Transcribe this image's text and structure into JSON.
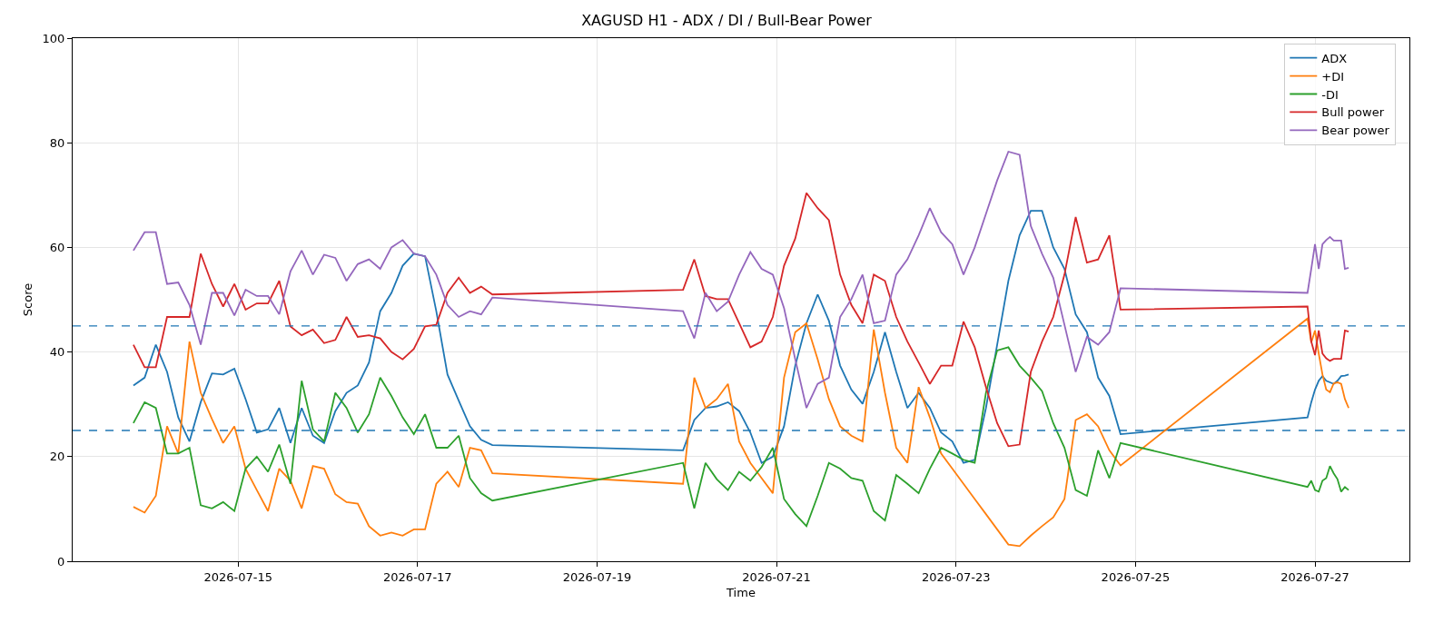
{
  "chart_data": {
    "type": "line",
    "title": "XAGUSD H1 - ADX / DI / Bull-Bear Power",
    "xlabel": "Time",
    "ylabel": "Score",
    "x": [
      "2026-07-13T20:00",
      "2026-07-13T23:00",
      "2026-07-14T02:00",
      "2026-07-14T05:00",
      "2026-07-14T08:00",
      "2026-07-14T11:00",
      "2026-07-14T14:00",
      "2026-07-14T17:00",
      "2026-07-14T20:00",
      "2026-07-14T23:00",
      "2026-07-15T02:00",
      "2026-07-15T05:00",
      "2026-07-15T08:00",
      "2026-07-15T11:00",
      "2026-07-15T14:00",
      "2026-07-15T17:00",
      "2026-07-15T20:00",
      "2026-07-15T23:00",
      "2026-07-16T02:00",
      "2026-07-16T05:00",
      "2026-07-16T08:00",
      "2026-07-16T11:00",
      "2026-07-16T14:00",
      "2026-07-16T17:00",
      "2026-07-16T20:00",
      "2026-07-16T23:00",
      "2026-07-17T02:00",
      "2026-07-17T05:00",
      "2026-07-17T08:00",
      "2026-07-17T11:00",
      "2026-07-17T14:00",
      "2026-07-17T17:00",
      "2026-07-17T20:00",
      "2026-07-19T23:00",
      "2026-07-20T02:00",
      "2026-07-20T05:00",
      "2026-07-20T08:00",
      "2026-07-20T11:00",
      "2026-07-20T14:00",
      "2026-07-20T17:00",
      "2026-07-20T20:00",
      "2026-07-20T23:00",
      "2026-07-21T02:00",
      "2026-07-21T05:00",
      "2026-07-21T08:00",
      "2026-07-21T11:00",
      "2026-07-21T14:00",
      "2026-07-21T17:00",
      "2026-07-21T20:00",
      "2026-07-21T23:00",
      "2026-07-22T02:00",
      "2026-07-22T05:00",
      "2026-07-22T08:00",
      "2026-07-22T11:00",
      "2026-07-22T14:00",
      "2026-07-22T17:00",
      "2026-07-22T20:00",
      "2026-07-22T23:00",
      "2026-07-23T02:00",
      "2026-07-23T05:00",
      "2026-07-23T08:00",
      "2026-07-23T11:00",
      "2026-07-23T14:00",
      "2026-07-23T17:00",
      "2026-07-23T20:00",
      "2026-07-23T23:00",
      "2026-07-24T02:00",
      "2026-07-24T05:00",
      "2026-07-24T08:00",
      "2026-07-24T11:00",
      "2026-07-24T14:00",
      "2026-07-24T17:00",
      "2026-07-24T20:00",
      "2026-07-26T22:00",
      "2026-07-26T23:00",
      "2026-07-27T00:00",
      "2026-07-27T01:00",
      "2026-07-27T02:00",
      "2026-07-27T03:00",
      "2026-07-27T04:00",
      "2026-07-27T05:00",
      "2026-07-27T06:00",
      "2026-07-27T07:00",
      "2026-07-27T08:00",
      "2026-07-27T09:00"
    ],
    "series": [
      {
        "name": "ADX",
        "color": "#1f77b4",
        "values": [
          33.6,
          35.1,
          41.4,
          36.2,
          27.5,
          22.9,
          30.4,
          35.9,
          35.7,
          36.8,
          31,
          24.6,
          25.2,
          29.3,
          22.6,
          29.3,
          24,
          22.6,
          28.7,
          32.2,
          33.6,
          38,
          47.8,
          51.3,
          56.5,
          58.8,
          58.3,
          47.8,
          35.7,
          30.7,
          25.8,
          23.2,
          22.2,
          21.2,
          27,
          29.3,
          29.6,
          30.4,
          28.7,
          24.6,
          18.8,
          20,
          25.8,
          37.4,
          45.5,
          51,
          46,
          37.4,
          32.8,
          30.1,
          36.2,
          43.8,
          36.2,
          29.3,
          32.2,
          29.3,
          24.6,
          22.9,
          18.8,
          19.4,
          29.3,
          41.4,
          53.6,
          62.3,
          67,
          67,
          60,
          55.9,
          47.2,
          43.8,
          35.1,
          31.6,
          24.3,
          27.5,
          30.4,
          32.8,
          34.5,
          35.4,
          34.5,
          34.2,
          33.9,
          34.5,
          35.4,
          35.5,
          35.7
        ]
      },
      {
        "name": "+DI",
        "color": "#ff7f0e",
        "values": [
          10.4,
          9.3,
          12.5,
          25.8,
          20.6,
          42,
          32.2,
          27.2,
          22.6,
          25.8,
          17.7,
          13.6,
          9.6,
          17.7,
          15.4,
          10.1,
          18.2,
          17.7,
          12.8,
          11.3,
          11,
          6.7,
          4.9,
          5.5,
          4.9,
          6.1,
          6.1,
          14.8,
          17.1,
          14.2,
          21.7,
          21.2,
          16.8,
          14.8,
          35.1,
          29.3,
          31,
          33.9,
          22.9,
          18.8,
          15.9,
          13,
          35.1,
          43.8,
          45.5,
          38.6,
          31,
          25.8,
          24,
          22.9,
          44.3,
          32.2,
          21.7,
          18.8,
          33.3,
          27.5,
          20.6,
          17.7,
          14.8,
          11.9,
          9,
          6.1,
          3.2,
          2.9,
          4.9,
          6.7,
          8.4,
          11.9,
          27,
          28.1,
          25.8,
          21.2,
          18.3,
          46.4,
          41.8,
          44.1,
          39.7,
          35.7,
          32.8,
          32.3,
          34,
          34.2,
          33.9,
          31,
          29.3
        ]
      },
      {
        "name": "-DI",
        "color": "#2ca02c",
        "values": [
          26.4,
          30.4,
          29.3,
          20.6,
          20.6,
          21.7,
          10.7,
          10.1,
          11.3,
          9.6,
          17.7,
          20,
          17.1,
          22.3,
          14.8,
          34.5,
          25.2,
          22.9,
          32.2,
          29.3,
          24.6,
          28.1,
          35.1,
          31.6,
          27.5,
          24.3,
          28.1,
          21.7,
          21.7,
          24,
          15.9,
          13,
          11.6,
          18.8,
          10.1,
          18.8,
          15.7,
          13.6,
          17.1,
          15.4,
          18,
          21.7,
          11.9,
          9,
          6.7,
          12.5,
          18.8,
          17.7,
          15.9,
          15.4,
          9.6,
          7.8,
          16.5,
          14.8,
          13,
          17.7,
          21.7,
          20.6,
          19.4,
          18.8,
          32.2,
          40.3,
          40.9,
          37.4,
          35.1,
          32.5,
          26.4,
          21.7,
          13.6,
          12.5,
          21.2,
          15.9,
          22.6,
          14.2,
          15.4,
          13.6,
          13.3,
          15.4,
          15.9,
          18.2,
          16.8,
          15.7,
          13.3,
          14.2,
          13.6
        ]
      },
      {
        "name": "Bull power",
        "color": "#d62728",
        "values": [
          41.4,
          37.1,
          37.1,
          46.7,
          46.7,
          46.7,
          58.8,
          53,
          48.7,
          53,
          48.1,
          49.3,
          49.3,
          53.6,
          44.9,
          43.2,
          44.3,
          41.7,
          42.3,
          46.7,
          42.9,
          43.2,
          42.6,
          40,
          38.6,
          40.6,
          44.9,
          45.2,
          51.3,
          54.2,
          51.3,
          52.5,
          51,
          51.9,
          57.7,
          50.7,
          50.1,
          50.1,
          45.5,
          40.9,
          42,
          46.7,
          56.5,
          61.7,
          70.4,
          67.5,
          65.2,
          54.8,
          49,
          45.5,
          54.8,
          53.6,
          46.7,
          42,
          38,
          33.9,
          37.4,
          37.4,
          45.8,
          40.9,
          33.3,
          26.4,
          22,
          22.3,
          36.2,
          42,
          46.7,
          54.8,
          65.8,
          57.1,
          57.7,
          62.3,
          48.1,
          48.7,
          42,
          39.4,
          44.1,
          39.7,
          38.8,
          38.3,
          38.7,
          38.7,
          38.7,
          44.1,
          43.9
        ]
      },
      {
        "name": "Bear power",
        "color": "#9467bd",
        "values": [
          59.4,
          62.9,
          62.9,
          53,
          53.3,
          49,
          41.4,
          51.3,
          51.3,
          47,
          51.9,
          50.7,
          50.7,
          47.2,
          55.4,
          59.4,
          54.8,
          58.6,
          58,
          53.6,
          56.8,
          57.7,
          55.9,
          60,
          61.4,
          58.8,
          58.3,
          54.8,
          49,
          46.7,
          47.8,
          47.2,
          50.4,
          47.8,
          42.6,
          51.3,
          47.8,
          49.6,
          54.8,
          59.1,
          55.9,
          54.8,
          48.4,
          38.6,
          29.3,
          33.9,
          35.1,
          46.7,
          50.1,
          54.8,
          45.5,
          46,
          54.8,
          57.7,
          62.3,
          67.5,
          62.9,
          60.6,
          54.8,
          60,
          66.4,
          72.8,
          78.3,
          77.7,
          64.1,
          58.8,
          54.2,
          45.2,
          36.2,
          42.9,
          41.4,
          43.8,
          52.2,
          51.3,
          55.9,
          60.6,
          55.9,
          60.6,
          61.4,
          62,
          61.3,
          61.3,
          61.3,
          55.9,
          56.1
        ]
      }
    ],
    "xlim": [
      "2026-07-13T03:45",
      "2026-07-28T01:15"
    ],
    "xticks": [
      "2026-07-15",
      "2026-07-17",
      "2026-07-19",
      "2026-07-21",
      "2026-07-23",
      "2026-07-25",
      "2026-07-27"
    ],
    "ylim": [
      0,
      100
    ],
    "yticks": [
      0,
      20,
      40,
      60,
      80,
      100
    ],
    "ref_lines": [
      {
        "axis": "y",
        "value": 45,
        "color": "#1f77b4",
        "line_style": "dashed"
      },
      {
        "axis": "y",
        "value": 25,
        "color": "#1f77b4",
        "line_style": "dashed"
      }
    ],
    "grid": true,
    "legend": "top right",
    "line_style": "solid"
  }
}
